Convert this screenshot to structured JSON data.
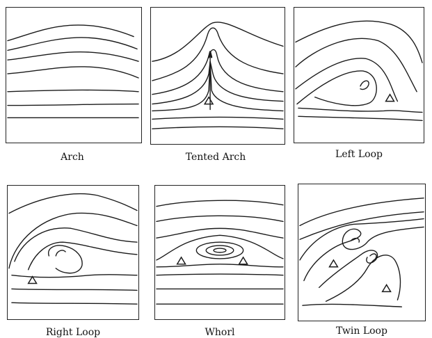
{
  "patterns": [
    {
      "name": "arch",
      "label": "Arch"
    },
    {
      "name": "tented-arch",
      "label": "Tented Arch"
    },
    {
      "name": "left-loop",
      "label": "Left Loop"
    },
    {
      "name": "right-loop",
      "label": "Right Loop"
    },
    {
      "name": "whorl",
      "label": "Whorl"
    },
    {
      "name": "twin-loop",
      "label": "Twin Loop"
    }
  ]
}
